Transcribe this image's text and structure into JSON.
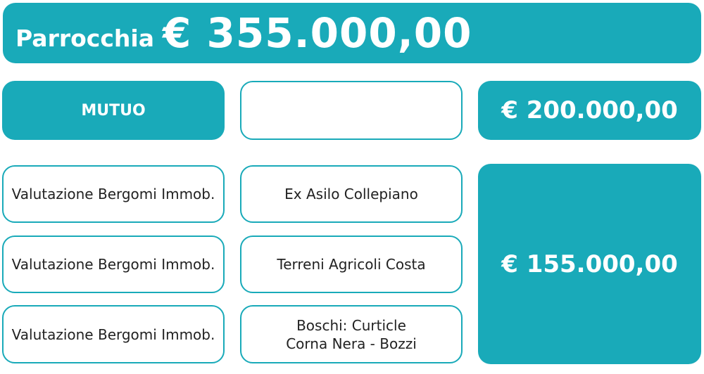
{
  "header": {
    "label": "Parrocchia",
    "amount": "€ 355.000,00"
  },
  "row1": {
    "left": "MUTUO",
    "middle": "",
    "right": "€ 200.000,00"
  },
  "items": [
    {
      "left": "Valutazione Bergomi Immob.",
      "middle": "Ex Asilo Collepiano"
    },
    {
      "left": "Valutazione Bergomi Immob.",
      "middle": "Terreni Agricoli Costa"
    },
    {
      "left": "Valutazione Bergomi Immob.",
      "middle_line1": "Boschi: Curticle",
      "middle_line2": "Corna Nera - Bozzi"
    }
  ],
  "total_right": "€ 155.000,00",
  "colors": {
    "accent": "#19aab9"
  }
}
